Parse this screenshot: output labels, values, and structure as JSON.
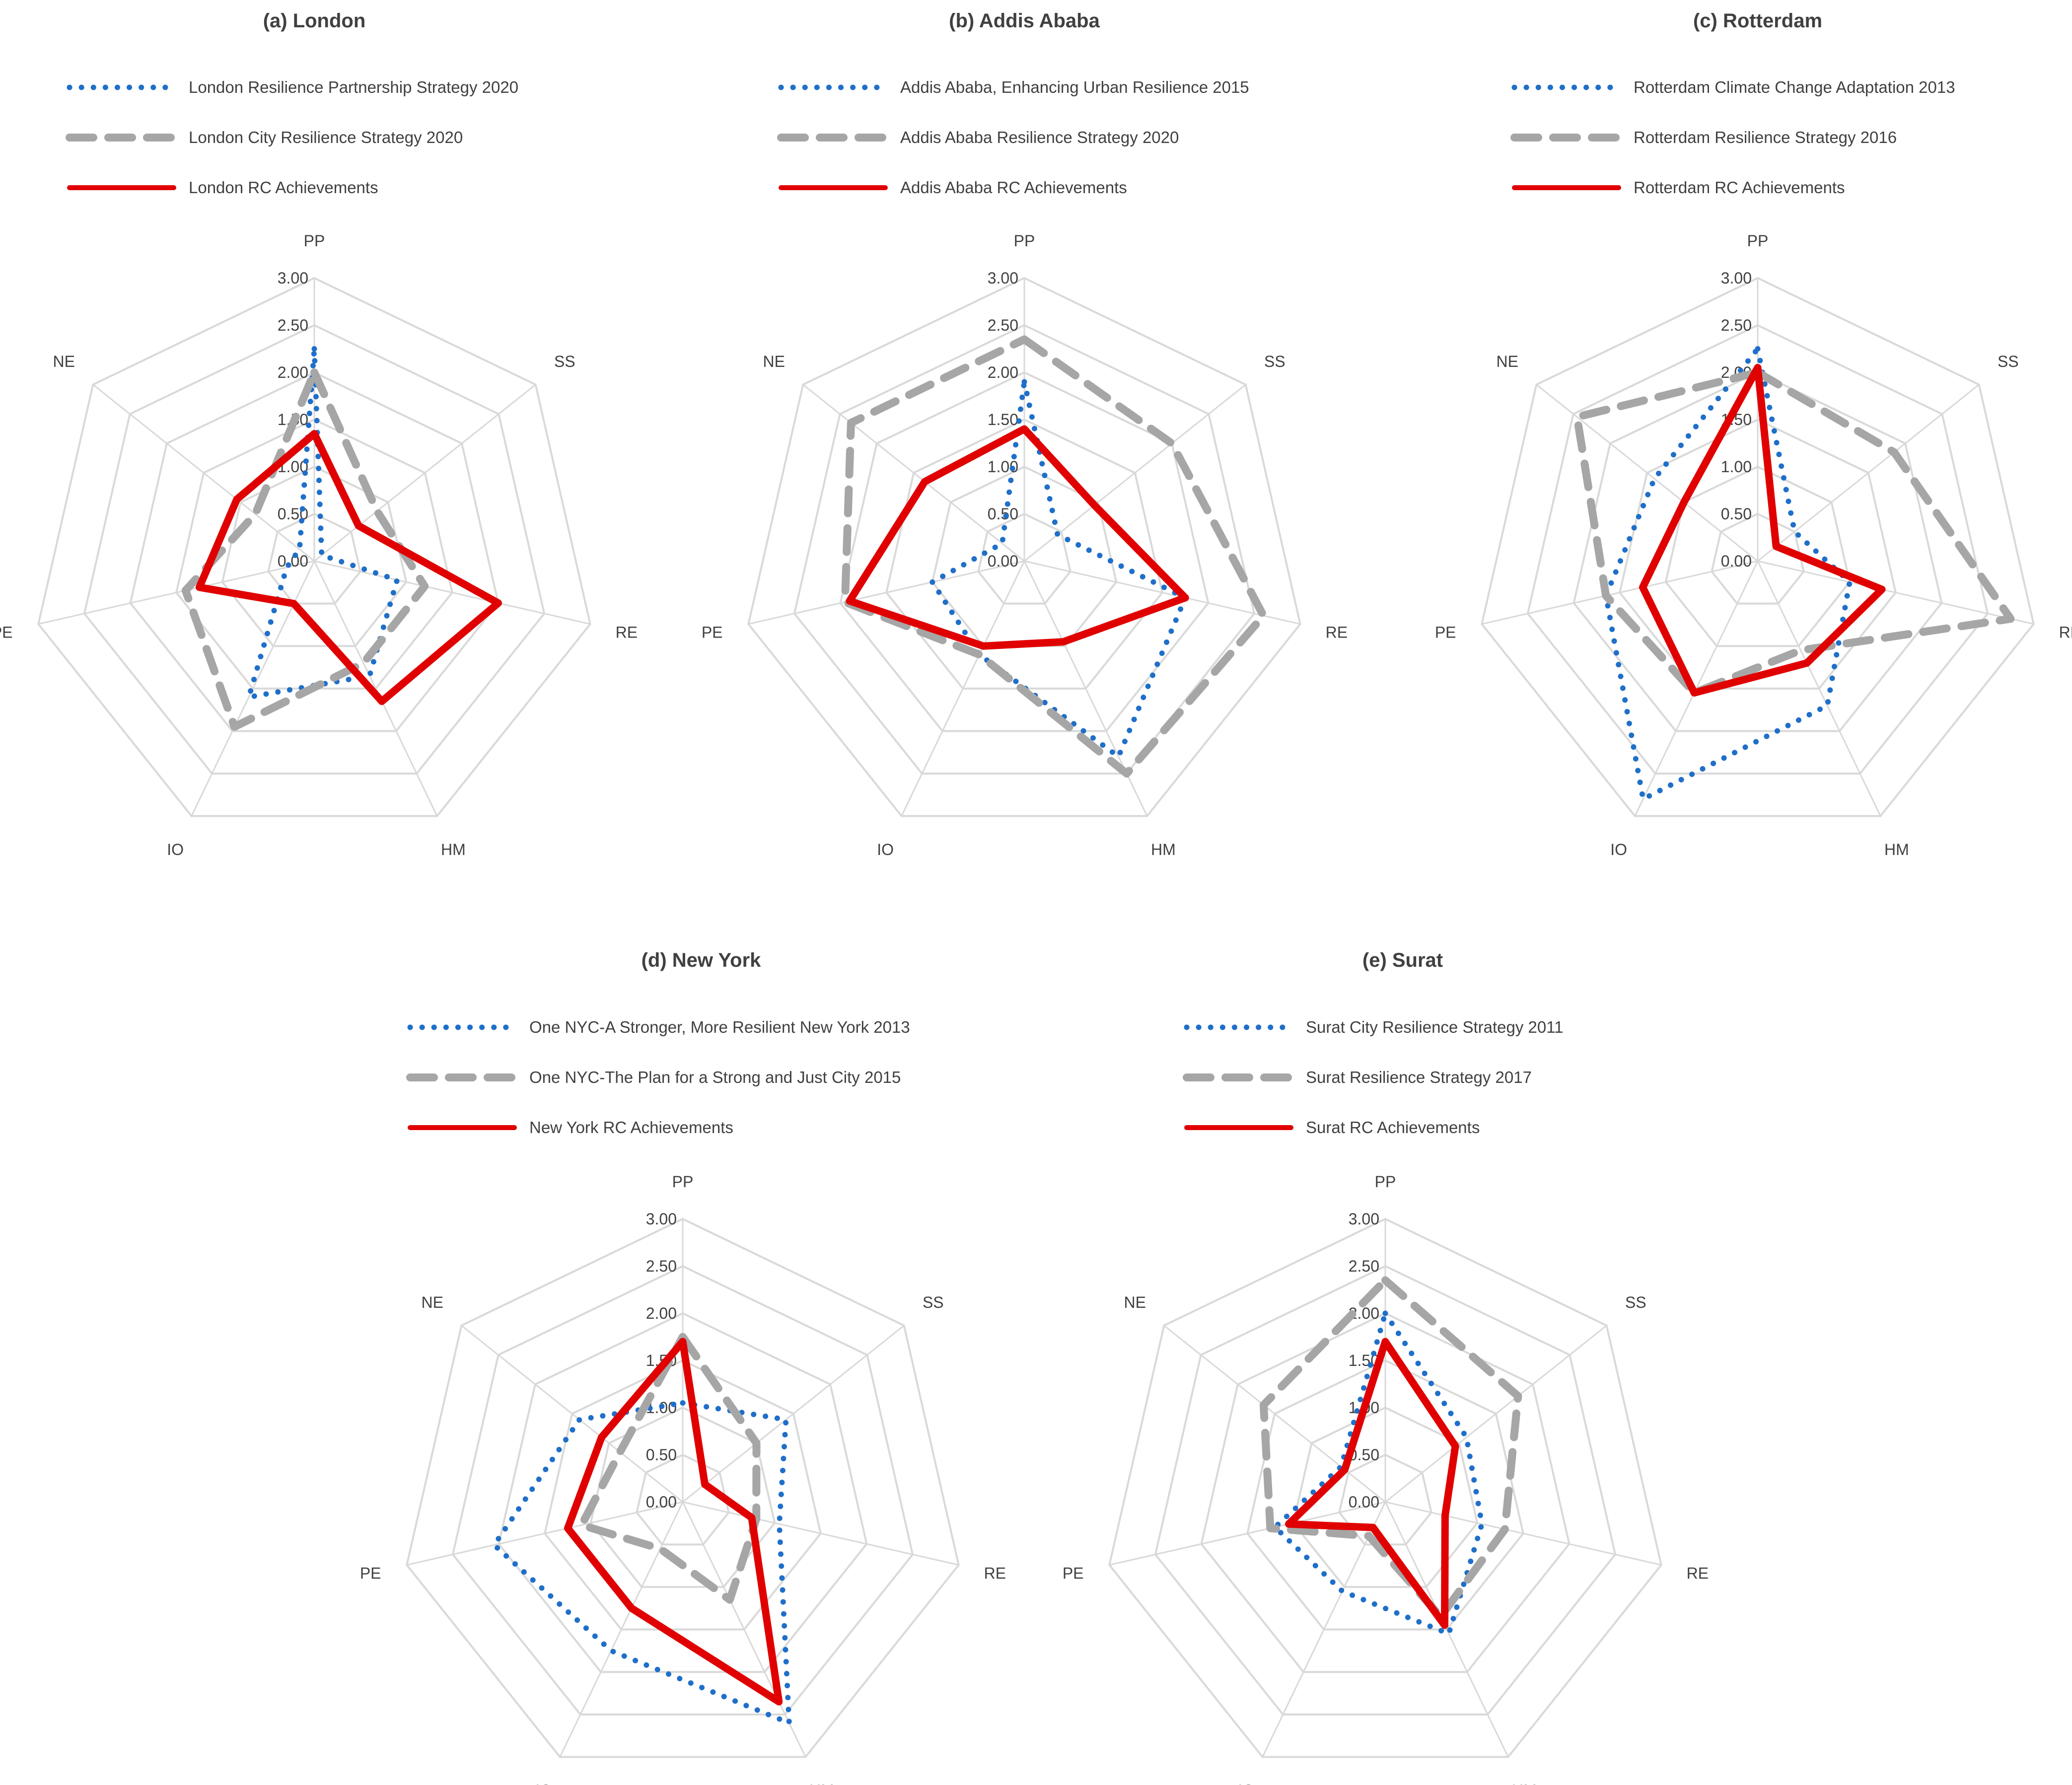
{
  "figure_title": "Resilience strategies vs. RC achievements radar charts",
  "colors": {
    "strategy_dotted": "#1f6fc9",
    "strategy_dashed": "#a6a6a6",
    "achievements": "#e00000",
    "grid": "#d9d9d9",
    "text": "#404040"
  },
  "chart_data": [
    {
      "type": "radar",
      "title": "(a) London",
      "axes": [
        "PP",
        "SS",
        "RE",
        "HM",
        "IO",
        "PE",
        "NE"
      ],
      "rlim": [
        0,
        3
      ],
      "ticks": [
        "0.00",
        "0.50",
        "1.00",
        "1.50",
        "2.00",
        "2.50",
        "3.00"
      ],
      "series": [
        {
          "name": "London Resilience Partnership Strategy 2020",
          "style": "dotted",
          "values": [
            2.25,
            0.1,
            0.9,
            1.35,
            1.6,
            0.3,
            0.2
          ]
        },
        {
          "name": "London City Resilience Strategy 2020",
          "style": "dashed",
          "values": [
            2.0,
            0.85,
            1.2,
            1.2,
            1.95,
            1.4,
            0.8
          ]
        },
        {
          "name": "London RC Achievements",
          "style": "solid",
          "values": [
            1.35,
            0.6,
            2.0,
            1.65,
            0.5,
            1.25,
            1.05
          ]
        }
      ]
    },
    {
      "type": "radar",
      "title": "(b) Addis Ababa",
      "axes": [
        "PP",
        "SS",
        "RE",
        "HM",
        "IO",
        "PE",
        "NE"
      ],
      "rlim": [
        0,
        3
      ],
      "ticks": [
        "0.00",
        "0.50",
        "1.00",
        "1.50",
        "2.00",
        "2.50",
        "3.00"
      ],
      "series": [
        {
          "name": "Addis Ababa, Enhancing Urban Resilience 2015",
          "style": "dotted",
          "values": [
            1.9,
            0.45,
            1.75,
            2.3,
            1.1,
            1.0,
            0.3
          ]
        },
        {
          "name": "Addis Ababa Resilience Strategy 2020",
          "style": "dashed",
          "values": [
            2.35,
            2.0,
            2.6,
            2.5,
            1.1,
            1.95,
            2.35
          ]
        },
        {
          "name": "Addis Ababa RC Achievements",
          "style": "solid",
          "values": [
            1.4,
            0.95,
            1.75,
            0.95,
            1.0,
            1.9,
            1.35
          ]
        }
      ]
    },
    {
      "type": "radar",
      "title": "(c) Rotterdam",
      "axes": [
        "PP",
        "SS",
        "RE",
        "HM",
        "IO",
        "PE",
        "NE"
      ],
      "rlim": [
        0,
        3
      ],
      "ticks": [
        "0.00",
        "0.50",
        "1.00",
        "1.50",
        "2.00",
        "2.50",
        "3.00"
      ],
      "series": [
        {
          "name": "Rotterdam Climate Change Adaptation 2013",
          "style": "dotted",
          "values": [
            2.25,
            0.5,
            1.0,
            1.7,
            2.8,
            1.65,
            1.4
          ]
        },
        {
          "name": "Rotterdam Resilience Strategy 2016",
          "style": "dashed",
          "values": [
            2.0,
            1.85,
            2.75,
            1.05,
            1.55,
            1.65,
            2.45
          ]
        },
        {
          "name": "Rotterdam RC Achievements",
          "style": "solid",
          "values": [
            2.05,
            0.25,
            1.35,
            1.2,
            1.55,
            1.25,
            1.0
          ]
        }
      ]
    },
    {
      "type": "radar",
      "title": "(d) New York",
      "axes": [
        "PP",
        "SS",
        "RE",
        "HM",
        "IO",
        "PE",
        "NE"
      ],
      "rlim": [
        0,
        3
      ],
      "ticks": [
        "0.00",
        "0.50",
        "1.00",
        "1.50",
        "2.00",
        "2.50",
        "3.00"
      ],
      "series": [
        {
          "name": "One NYC-A Stronger, More Resilient New York 2013",
          "style": "dotted",
          "values": [
            1.05,
            1.4,
            1.05,
            2.6,
            1.75,
            2.05,
            1.4
          ]
        },
        {
          "name": "One NYC-The Plan for a Strong and Just City 2015",
          "style": "dashed",
          "values": [
            1.75,
            1.0,
            0.8,
            1.15,
            0.55,
            1.1,
            0.85
          ]
        },
        {
          "name": "New York RC Achievements",
          "style": "solid",
          "values": [
            1.7,
            0.3,
            0.75,
            2.35,
            1.25,
            1.25,
            1.1
          ]
        }
      ]
    },
    {
      "type": "radar",
      "title": "(e) Surat",
      "axes": [
        "PP",
        "SS",
        "RE",
        "HM",
        "IO",
        "PE",
        "NE"
      ],
      "rlim": [
        0,
        3
      ],
      "ticks": [
        "0.00",
        "0.50",
        "1.00",
        "1.50",
        "2.00",
        "2.50",
        "3.00"
      ],
      "series": [
        {
          "name": "Surat City Resilience Strategy 2011",
          "style": "dotted",
          "values": [
            2.0,
            1.1,
            1.05,
            1.55,
            1.05,
            1.2,
            0.6
          ]
        },
        {
          "name": "Surat Resilience Strategy 2017",
          "style": "dashed",
          "values": [
            2.35,
            1.8,
            1.3,
            1.35,
            0.4,
            1.25,
            1.65
          ]
        },
        {
          "name": "Surat RC Achievements",
          "style": "solid",
          "values": [
            1.7,
            0.95,
            0.65,
            1.45,
            0.3,
            1.05,
            0.55
          ]
        }
      ]
    }
  ]
}
